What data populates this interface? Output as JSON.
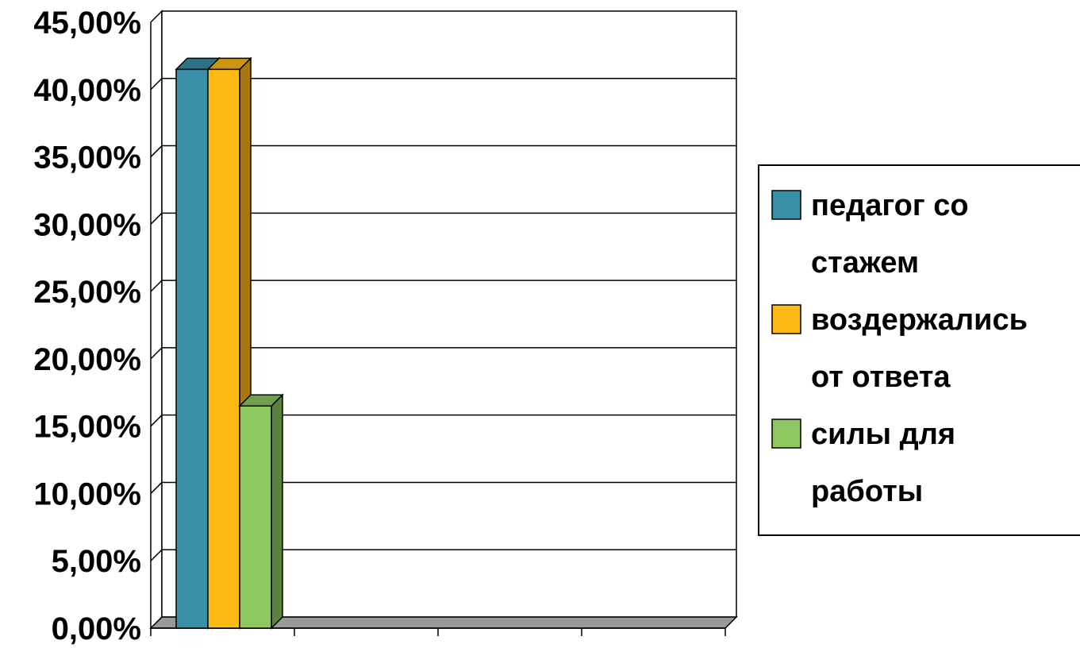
{
  "chart_data": {
    "type": "bar",
    "categories": [
      ""
    ],
    "series": [
      {
        "name": "педагог со стажем",
        "legend_lines": [
          "педагог со",
          "стажем"
        ],
        "values": [
          41.5
        ],
        "color": "#3a8fa8"
      },
      {
        "name": "воздержались от ответа",
        "legend_lines": [
          "воздержались",
          "от ответа"
        ],
        "values": [
          41.5
        ],
        "color": "#ffb915"
      },
      {
        "name": "силы для работы",
        "legend_lines": [
          "силы для",
          "работы"
        ],
        "values": [
          16.5
        ],
        "color": "#8dc760"
      }
    ],
    "yticks": [
      "0,00%",
      "5,00%",
      "10,00%",
      "15,00%",
      "20,00%",
      "25,00%",
      "30,00%",
      "35,00%",
      "40,00%",
      "45,00%"
    ],
    "ylim": [
      0,
      45
    ],
    "unit": "%",
    "grid": true,
    "legend_position": "right",
    "style": "3d-column"
  }
}
